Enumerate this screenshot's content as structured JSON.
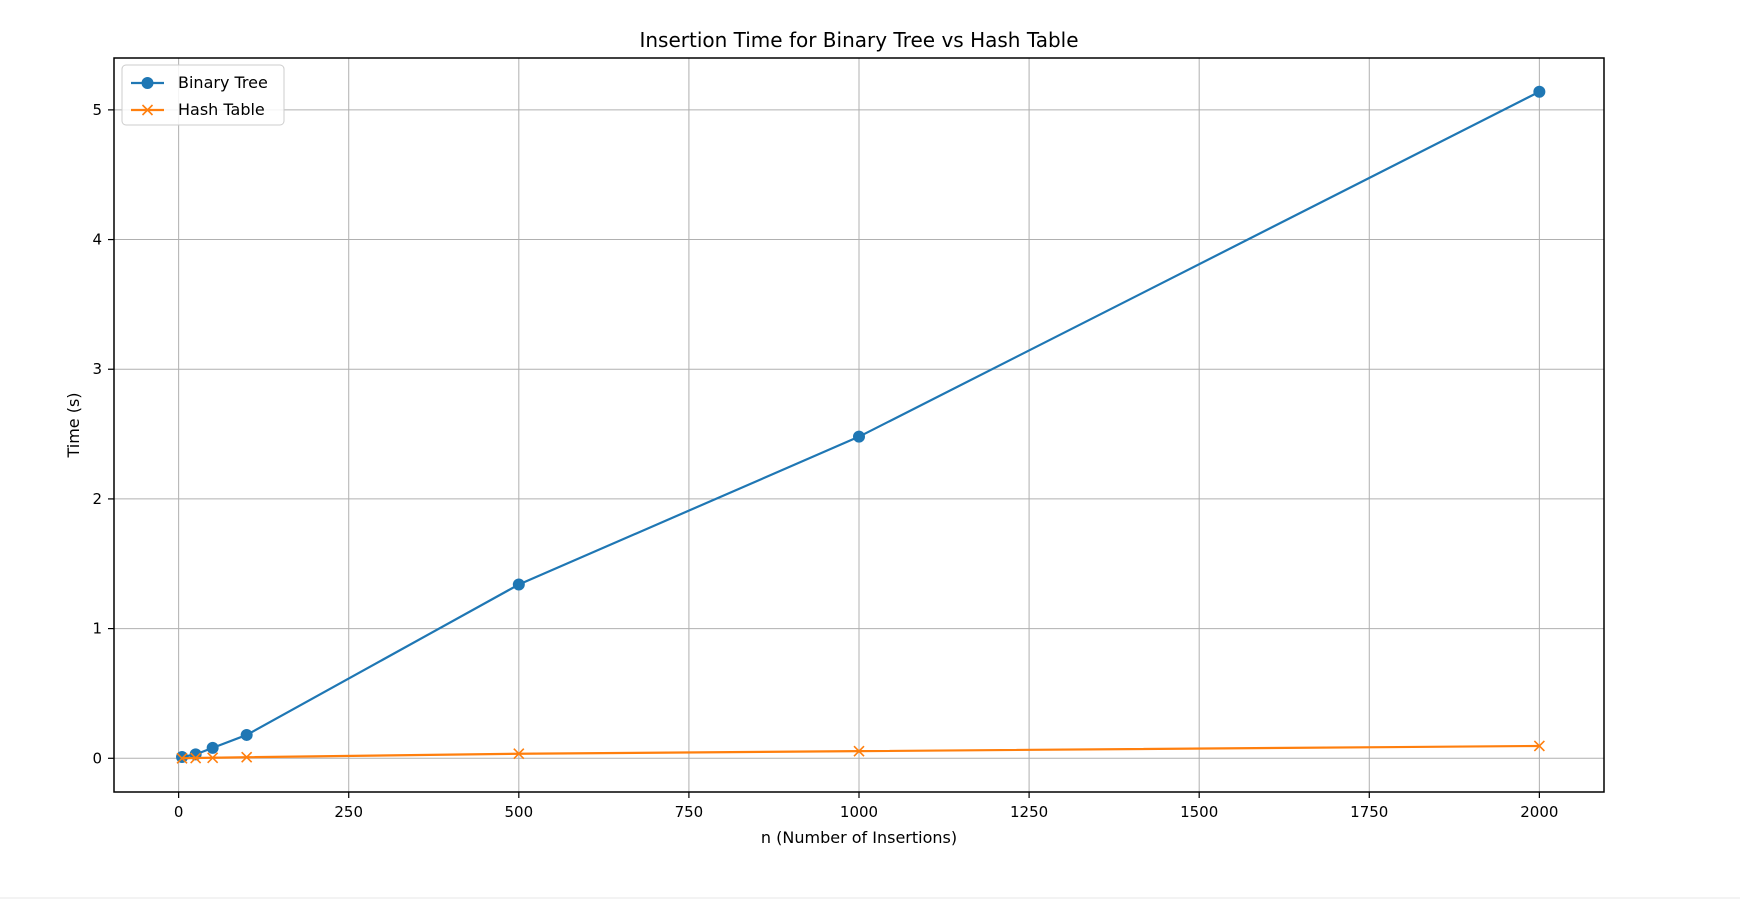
{
  "chart_data": {
    "type": "line",
    "title": "Insertion Time for Binary Tree vs Hash Table",
    "xlabel": "n (Number of Insertions)",
    "ylabel": "Time (s)",
    "xlim": [
      -95,
      2095
    ],
    "ylim": [
      -0.26,
      5.4
    ],
    "xticks": [
      0,
      250,
      500,
      750,
      1000,
      1250,
      1500,
      1750,
      2000
    ],
    "yticks": [
      0,
      1,
      2,
      3,
      4,
      5
    ],
    "grid": true,
    "legend_position": "top-left",
    "series": [
      {
        "name": "Binary Tree",
        "color": "#1f77b4",
        "marker": "circle",
        "x": [
          5,
          25,
          50,
          100,
          500,
          1000,
          2000
        ],
        "y": [
          0.01,
          0.03,
          0.08,
          0.18,
          1.34,
          2.48,
          5.14
        ]
      },
      {
        "name": "Hash Table",
        "color": "#ff7f0e",
        "marker": "x",
        "x": [
          5,
          25,
          50,
          100,
          500,
          1000,
          2000
        ],
        "y": [
          0.0,
          0.002,
          0.004,
          0.008,
          0.035,
          0.055,
          0.095
        ]
      }
    ]
  }
}
